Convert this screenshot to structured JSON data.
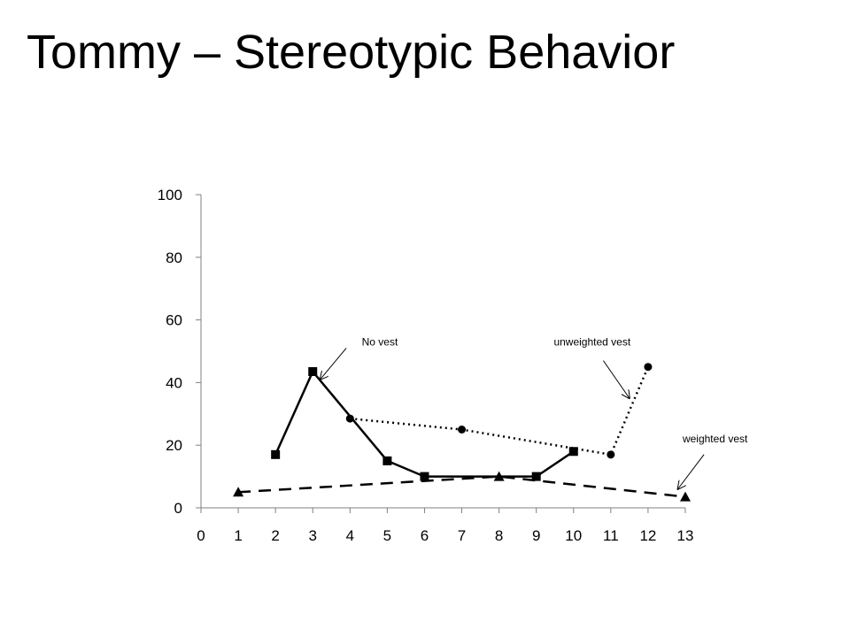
{
  "page": {
    "title": "Tommy – Stereotypic Behavior"
  },
  "chart_data": {
    "type": "line",
    "title": "",
    "xlabel": "",
    "ylabel": "",
    "xlim": [
      0,
      13
    ],
    "ylim": [
      0,
      100
    ],
    "x_ticks": [
      0,
      1,
      2,
      3,
      4,
      5,
      6,
      7,
      8,
      9,
      10,
      11,
      12,
      13
    ],
    "y_ticks": [
      0,
      20,
      40,
      60,
      80,
      100
    ],
    "grid": false,
    "legend": "none",
    "series": [
      {
        "key": "no-vest",
        "marker": "square",
        "line_style": "solid",
        "points": [
          [
            2,
            17
          ],
          [
            3,
            43.5
          ],
          [
            5,
            15
          ],
          [
            6,
            10
          ],
          [
            9,
            10
          ],
          [
            10,
            18
          ]
        ]
      },
      {
        "key": "unweighted-vest",
        "marker": "circle",
        "line_style": "dotted",
        "points": [
          [
            4,
            28.5
          ],
          [
            7,
            25
          ],
          [
            11,
            17
          ],
          [
            12,
            45
          ]
        ]
      },
      {
        "key": "weighted-vest",
        "marker": "triangle",
        "line_style": "dashed",
        "points": [
          [
            1,
            5
          ],
          [
            8,
            10
          ],
          [
            13,
            3.5
          ]
        ]
      }
    ],
    "annotations": [
      {
        "key": "no-vest",
        "text": "No vest",
        "label_at": [
          4.8,
          53
        ],
        "arrow_from": [
          3.9,
          51
        ],
        "arrow_to": [
          3.2,
          41
        ]
      },
      {
        "key": "unweighted-vest",
        "text": "unweighted vest",
        "label_at": [
          10.5,
          53
        ],
        "arrow_from": [
          10.8,
          47
        ],
        "arrow_to": [
          11.5,
          35
        ]
      },
      {
        "key": "weighted-vest",
        "text": "weighted vest",
        "label_at": [
          13.8,
          22
        ],
        "arrow_from": [
          13.5,
          17
        ],
        "arrow_to": [
          12.8,
          6
        ]
      }
    ],
    "colors": {
      "axis": "#808080",
      "series": "#000000"
    }
  }
}
